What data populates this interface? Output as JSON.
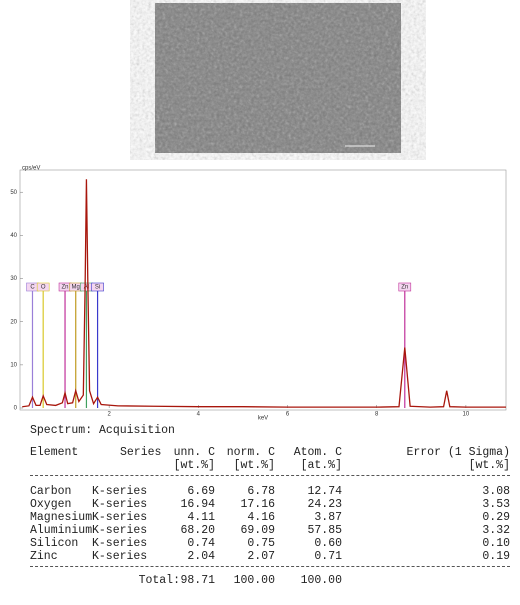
{
  "chart_data": {
    "type": "line",
    "y_label": "cps/eV",
    "x_label": "keV",
    "x": [
      0.05,
      0.2,
      0.28,
      0.36,
      0.45,
      0.52,
      0.6,
      0.8,
      0.95,
      1.01,
      1.07,
      1.18,
      1.25,
      1.32,
      1.42,
      1.46,
      1.49,
      1.52,
      1.56,
      1.65,
      1.74,
      1.82,
      2.2,
      3.0,
      4.0,
      5.0,
      6.0,
      7.0,
      8.0,
      8.5,
      8.63,
      8.75,
      9.2,
      9.5,
      9.57,
      9.64,
      10.0,
      10.9
    ],
    "values": [
      0.3,
      0.5,
      2.5,
      0.6,
      0.6,
      2.8,
      0.8,
      0.6,
      1.2,
      3.5,
      1.0,
      1.2,
      4.0,
      1.5,
      3.0,
      28,
      53,
      30,
      4,
      1.0,
      2.5,
      0.8,
      0.5,
      0.4,
      0.3,
      0.3,
      0.2,
      0.2,
      0.2,
      0.3,
      14,
      0.4,
      0.2,
      0.3,
      4.0,
      0.3,
      0.2,
      0.2
    ],
    "color": "#a8160c",
    "xlim": [
      0,
      10.9
    ],
    "ylim": [
      0,
      54
    ],
    "xticks": [
      2,
      4,
      6,
      8,
      10
    ],
    "yticks": [
      0,
      10,
      20,
      30,
      40,
      50
    ],
    "markers": [
      {
        "label": "C",
        "x": 0.28,
        "color": "#9a7fd8"
      },
      {
        "label": "O",
        "x": 0.52,
        "color": "#d9c82a"
      },
      {
        "label": "Zn",
        "x": 1.01,
        "color": "#c0309a"
      },
      {
        "label": "Mg",
        "x": 1.25,
        "color": "#c09a20"
      },
      {
        "label": "Al",
        "x": 1.49,
        "color": "#40a060"
      },
      {
        "label": "Si",
        "x": 1.74,
        "color": "#3a3acc"
      },
      {
        "label": "Zn",
        "x": 8.63,
        "color": "#c0309a"
      }
    ]
  },
  "table": {
    "title": "Spectrum: Acquisition",
    "header": [
      "Element",
      "Series",
      "unn. C",
      "norm. C",
      "Atom. C",
      "Error (1 Sigma)"
    ],
    "units": [
      "[wt.%]",
      "[wt.%]",
      "[at.%]",
      "[wt.%]"
    ],
    "rows": [
      [
        "Carbon",
        "K-series",
        "6.69",
        "6.78",
        "12.74",
        "3.08"
      ],
      [
        "Oxygen",
        "K-series",
        "16.94",
        "17.16",
        "24.23",
        "3.53"
      ],
      [
        "Magnesium",
        "K-series",
        "4.11",
        "4.16",
        "3.87",
        "0.29"
      ],
      [
        "Aluminium",
        "K-series",
        "68.20",
        "69.09",
        "57.85",
        "3.32"
      ],
      [
        "Silicon",
        "K-series",
        "0.74",
        "0.75",
        "0.60",
        "0.10"
      ],
      [
        "Zinc",
        "K-series",
        "2.04",
        "2.07",
        "0.71",
        "0.19"
      ]
    ],
    "total": [
      "Total:",
      "98.71",
      "100.00",
      "100.00"
    ]
  }
}
